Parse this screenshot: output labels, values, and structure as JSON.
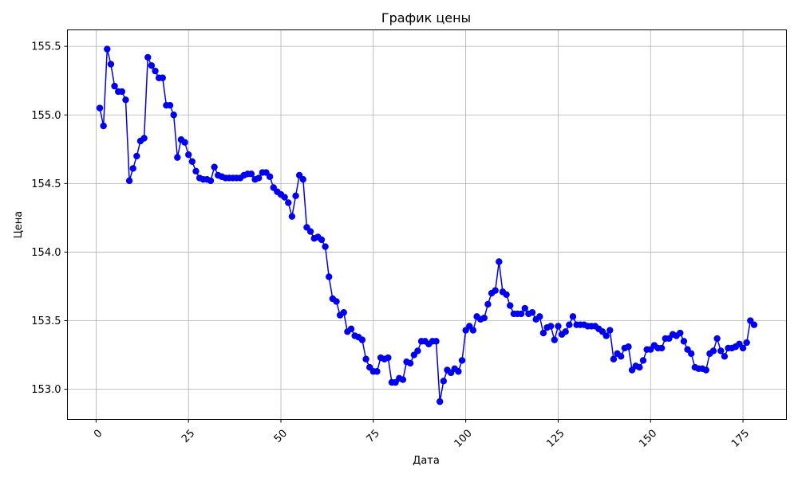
{
  "chart_data": {
    "type": "line",
    "title": "График цены",
    "xlabel": "Дата",
    "ylabel": "Цена",
    "xlim": [
      -7.75,
      186.75
    ],
    "ylim": [
      152.78,
      155.62
    ],
    "xticks": [
      0,
      25,
      50,
      75,
      100,
      125,
      150,
      175
    ],
    "yticks": [
      153.0,
      153.5,
      154.0,
      154.5,
      155.0,
      155.5
    ],
    "ytick_labels": [
      "153.0",
      "153.5",
      "154.0",
      "154.5",
      "155.0",
      "155.5"
    ],
    "grid": true,
    "colors": {
      "line": "#0000ee",
      "marker": "#0000ee"
    },
    "series": [
      {
        "x": [
          1,
          2,
          3,
          4,
          5,
          6,
          7,
          8,
          9,
          10,
          11,
          12,
          13,
          14,
          15,
          16,
          17,
          18,
          19,
          20,
          21,
          22,
          23,
          24,
          25,
          26,
          27,
          28,
          29,
          30,
          31,
          32,
          33,
          34,
          35,
          36,
          37,
          38,
          39,
          40,
          41,
          42,
          43,
          44,
          45,
          46,
          47,
          48,
          49,
          50,
          51,
          52,
          53,
          54,
          55,
          56,
          57,
          58,
          59,
          60,
          61,
          62,
          63,
          64,
          65,
          66,
          67,
          68,
          69,
          70,
          71,
          72,
          73,
          74,
          75,
          76,
          77,
          78,
          79,
          80,
          81,
          82,
          83,
          84,
          85,
          86,
          87,
          88,
          89,
          90,
          91,
          92,
          93,
          94,
          95,
          96,
          97,
          98,
          99,
          100,
          101,
          102,
          103,
          104,
          105,
          106,
          107,
          108,
          109,
          110,
          111,
          112,
          113,
          114,
          115,
          116,
          117,
          118,
          119,
          120,
          121,
          122,
          123,
          124,
          125,
          126,
          127,
          128,
          129,
          130,
          131,
          132,
          133,
          134,
          135,
          136,
          137,
          138,
          139,
          140,
          141,
          142,
          143,
          144,
          145,
          146,
          147,
          148,
          149,
          150,
          151,
          152,
          153,
          154,
          155,
          156,
          157,
          158,
          159,
          160,
          161,
          162,
          163,
          164,
          165,
          166,
          167,
          168,
          169,
          170,
          171,
          172,
          173,
          174,
          175,
          176,
          177,
          178
        ],
        "values": [
          155.05,
          154.92,
          155.48,
          155.37,
          155.21,
          155.17,
          155.17,
          155.11,
          154.52,
          154.61,
          154.7,
          154.81,
          154.83,
          155.42,
          155.36,
          155.32,
          155.27,
          155.27,
          155.07,
          155.07,
          155.0,
          154.69,
          154.82,
          154.8,
          154.71,
          154.66,
          154.59,
          154.54,
          154.53,
          154.53,
          154.52,
          154.62,
          154.56,
          154.55,
          154.54,
          154.54,
          154.54,
          154.54,
          154.54,
          154.56,
          154.57,
          154.57,
          154.53,
          154.54,
          154.58,
          154.58,
          154.55,
          154.47,
          154.44,
          154.42,
          154.4,
          154.36,
          154.26,
          154.41,
          154.56,
          154.53,
          154.18,
          154.15,
          154.1,
          154.11,
          154.09,
          154.04,
          153.82,
          153.66,
          153.64,
          153.54,
          153.56,
          153.42,
          153.44,
          153.39,
          153.38,
          153.36,
          153.22,
          153.16,
          153.13,
          153.13,
          153.23,
          153.22,
          153.23,
          153.05,
          153.05,
          153.08,
          153.07,
          153.2,
          153.19,
          153.25,
          153.28,
          153.35,
          153.35,
          153.33,
          153.35,
          153.35,
          152.91,
          153.06,
          153.14,
          153.12,
          153.15,
          153.13,
          153.21,
          153.43,
          153.46,
          153.43,
          153.53,
          153.51,
          153.52,
          153.62,
          153.7,
          153.72,
          153.93,
          153.71,
          153.69,
          153.61,
          153.55,
          153.55,
          153.55,
          153.59,
          153.55,
          153.56,
          153.51,
          153.53,
          153.41,
          153.45,
          153.46,
          153.36,
          153.46,
          153.4,
          153.42,
          153.47,
          153.53,
          153.47,
          153.47,
          153.47,
          153.46,
          153.46,
          153.46,
          153.44,
          153.42,
          153.39,
          153.43,
          153.22,
          153.26,
          153.24,
          153.3,
          153.31,
          153.14,
          153.17,
          153.16,
          153.21,
          153.29,
          153.29,
          153.32,
          153.3,
          153.3,
          153.37,
          153.37,
          153.4,
          153.39,
          153.41,
          153.35,
          153.29,
          153.26,
          153.16,
          153.15,
          153.15,
          153.14,
          153.26,
          153.28,
          153.37,
          153.28,
          153.24,
          153.3,
          153.3,
          153.31,
          153.33,
          153.3,
          153.34,
          153.5,
          153.47
        ]
      }
    ]
  }
}
